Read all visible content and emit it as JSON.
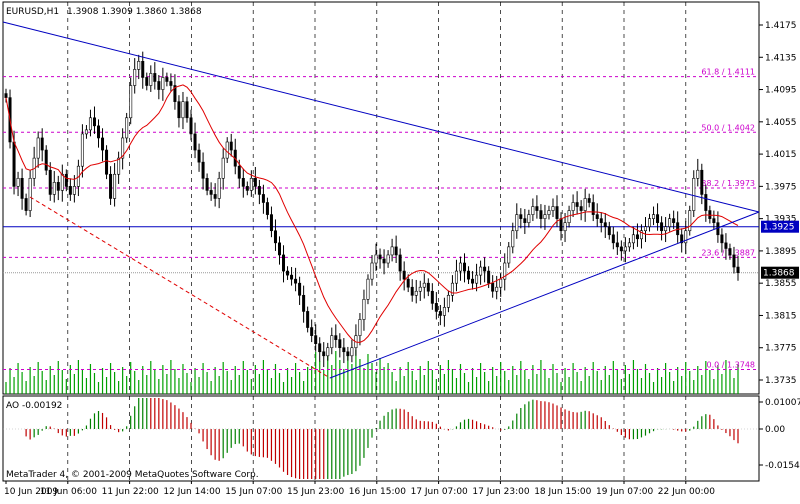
{
  "header": {
    "symbol": "EURUSD,H1",
    "ohlc": "1.3908 1.3909 1.3860 1.3868"
  },
  "footer": {
    "copyright": "MetaTrader 4, © 2001-2009 MetaQuotes Software Corp."
  },
  "price_panel": {
    "ticks": [
      "1.4175",
      "1.4135",
      "1.4095",
      "1.4055",
      "1.4015",
      "1.3975",
      "1.3935",
      "1.3895",
      "1.3855",
      "1.3815",
      "1.3775",
      "1.3735"
    ],
    "current_price_label": "1.3868",
    "level_line_label": "1.3925"
  },
  "fibonacci": [
    {
      "label": "61.8 / 1.4111",
      "price": 1.4111
    },
    {
      "label": "50.0 / 1.4042",
      "price": 1.4042
    },
    {
      "label": "38.2 / 1.3973",
      "price": 1.3973
    },
    {
      "label": "23.6 / 1.3887",
      "price": 1.3887
    },
    {
      "label": "0.0 / 1.3748",
      "price": 1.3748
    }
  ],
  "indicator": {
    "label": "AO -0.00192",
    "ticks": [
      "0.01007",
      "0.00",
      "-0.01542"
    ]
  },
  "time_axis": [
    "10 Jun 2009",
    "11 Jun 06:00",
    "11 Jun 22:00",
    "12 Jun 14:00",
    "15 Jun 07:00",
    "15 Jun 23:00",
    "16 Jun 15:00",
    "17 Jun 07:00",
    "17 Jun 23:00",
    "18 Jun 15:00",
    "19 Jun 07:00",
    "22 Jun 00:00"
  ],
  "colors": {
    "candle": "#000000",
    "moving_average": "#e00000",
    "trendline": "#0000c0",
    "fibo": "#cc00cc",
    "volume": "#00a000",
    "ao_up": "#008000",
    "ao_down": "#c00000",
    "grid": "#000000"
  },
  "chart_data": {
    "type": "candlestick",
    "symbol": "EURUSD",
    "timeframe": "H1",
    "ylim": [
      1.373,
      1.421
    ],
    "close_series": [
      1.4085,
      1.403,
      1.3975,
      1.3985,
      1.396,
      1.3945,
      1.3985,
      1.401,
      1.4035,
      1.402,
      1.3995,
      1.3965,
      1.398,
      1.397,
      1.399,
      1.3975,
      1.3965,
      1.3975,
      1.4,
      1.404,
      1.4045,
      1.406,
      1.405,
      1.4035,
      1.402,
      1.399,
      1.396,
      1.399,
      1.401,
      1.4035,
      1.406,
      1.41,
      1.412,
      1.413,
      1.411,
      1.41,
      1.4115,
      1.4105,
      1.4095,
      1.411,
      1.4105,
      1.41,
      1.408,
      1.406,
      1.408,
      1.406,
      1.404,
      1.402,
      1.4005,
      1.3985,
      1.397,
      1.3965,
      1.396,
      1.3985,
      1.401,
      1.403,
      1.402,
      1.4,
      1.3985,
      1.3975,
      1.397,
      1.3985,
      1.3975,
      1.3965,
      1.3955,
      1.394,
      1.392,
      1.3905,
      1.389,
      1.387,
      1.3865,
      1.386,
      1.3855,
      1.384,
      1.382,
      1.38,
      1.379,
      1.378,
      1.377,
      1.3765,
      1.3775,
      1.379,
      1.3785,
      1.3775,
      1.377,
      1.3765,
      1.3775,
      1.379,
      1.381,
      1.3835,
      1.386,
      1.388,
      1.389,
      1.3885,
      1.388,
      1.389,
      1.39,
      1.389,
      1.387,
      1.386,
      1.385,
      1.384,
      1.3845,
      1.385,
      1.3855,
      1.3845,
      1.383,
      1.382,
      1.3815,
      1.3825,
      1.384,
      1.3855,
      1.387,
      1.388,
      1.387,
      1.386,
      1.3855,
      1.3865,
      1.3875,
      1.387,
      1.3855,
      1.3845,
      1.385,
      1.386,
      1.388,
      1.39,
      1.392,
      1.394,
      1.3935,
      1.393,
      1.394,
      1.395,
      1.3945,
      1.3935,
      1.394,
      1.3945,
      1.395,
      1.3935,
      1.392,
      1.393,
      1.3945,
      1.3955,
      1.395,
      1.3945,
      1.396,
      1.3955,
      1.394,
      1.3935,
      1.393,
      1.3925,
      1.3915,
      1.3905,
      1.39,
      1.3895,
      1.39,
      1.3905,
      1.3915,
      1.391,
      1.392,
      1.3925,
      1.3935,
      1.394,
      1.393,
      1.392,
      1.3925,
      1.3935,
      1.393,
      1.3915,
      1.3905,
      1.392,
      1.3945,
      1.3985,
      1.3995,
      1.3965,
      1.3945,
      1.3935,
      1.393,
      1.3915,
      1.3905,
      1.3898,
      1.389,
      1.3875,
      1.3868
    ]
  }
}
